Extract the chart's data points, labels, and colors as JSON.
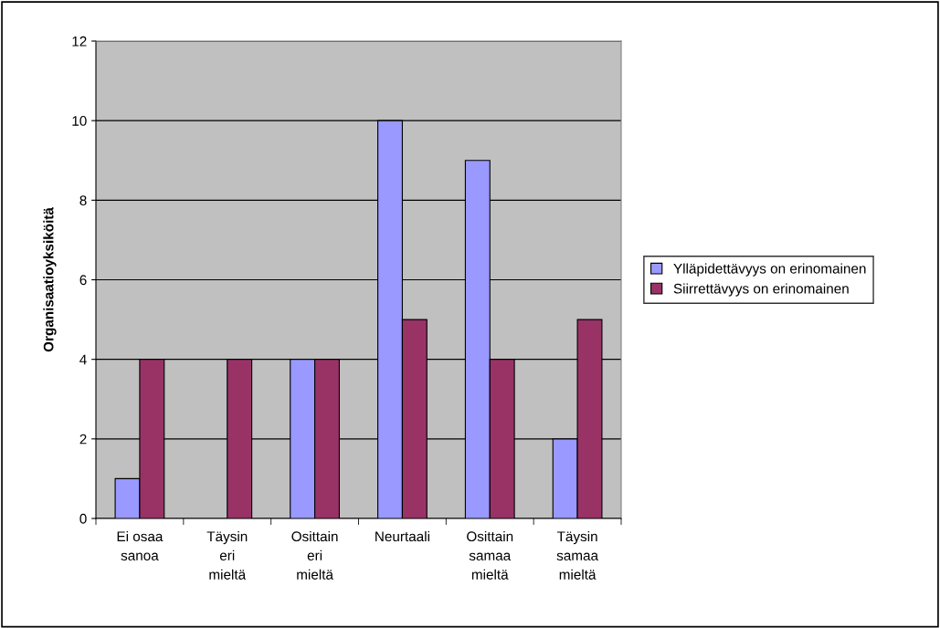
{
  "chart_data": {
    "type": "bar",
    "ylabel": "Organisaatioyksiköitä",
    "categories": [
      "Ei osaa\nsanoa",
      "Täysin\neri\nmieltä",
      "Osittain\neri\nmieltä",
      "Neurtaali",
      "Osittain\nsamaa\nmieltä",
      "Täysin\nsamaa\nmieltä"
    ],
    "series": [
      {
        "name": "Ylläpidettävyys on erinomainen",
        "color": "#9999ff",
        "values": [
          1,
          0,
          4,
          10,
          9,
          2
        ]
      },
      {
        "name": "Siirrettävyys on erinomainen",
        "color": "#993366",
        "values": [
          4,
          4,
          4,
          5,
          4,
          5
        ]
      }
    ],
    "ylim": [
      0,
      12
    ],
    "yticks": [
      0,
      2,
      4,
      6,
      8,
      10,
      12
    ],
    "grid": "y",
    "legend": "right"
  }
}
